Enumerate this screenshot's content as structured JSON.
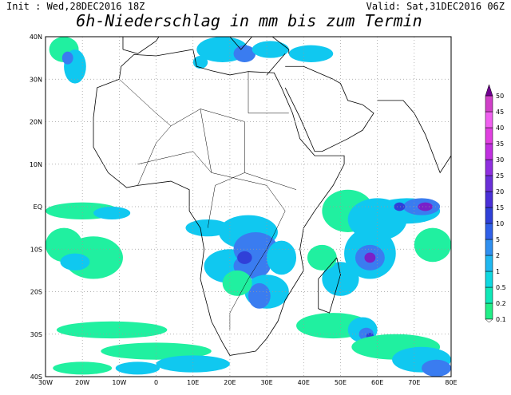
{
  "header": {
    "init": "Init : Wed,28DEC2016 18Z",
    "valid": "Valid: Sat,31DEC2016 06Z",
    "title": "6h-Niederschlag in mm bis zum Termin"
  },
  "map": {
    "lat_labels": [
      "40N",
      "30N",
      "20N",
      "10N",
      "EQ",
      "10S",
      "20S",
      "30S",
      "40S"
    ],
    "lon_labels": [
      "30W",
      "20W",
      "10W",
      "0",
      "10E",
      "20E",
      "30E",
      "40E",
      "50E",
      "60E",
      "70E",
      "80E"
    ]
  },
  "colorbar": {
    "labels": [
      "0.1",
      "0.2",
      "0.5",
      "1",
      "2",
      "5",
      "10",
      "15",
      "20",
      "25",
      "30",
      "35",
      "40",
      "45",
      "50"
    ]
  }
}
